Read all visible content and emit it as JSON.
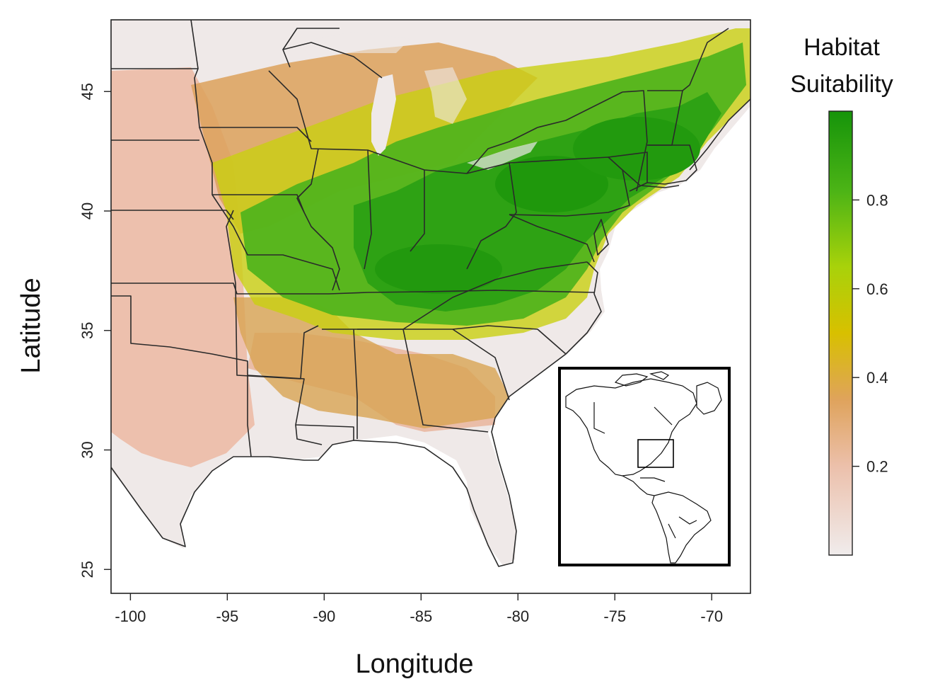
{
  "map": {
    "x_axis_title": "Longitude",
    "y_axis_title": "Latitude",
    "lon_range": [
      -101,
      -68
    ],
    "lat_range": [
      24,
      48
    ],
    "x_ticks": [
      {
        "value": -100,
        "label": "-100"
      },
      {
        "value": -95,
        "label": "-95"
      },
      {
        "value": -90,
        "label": "-90"
      },
      {
        "value": -85,
        "label": "-85"
      },
      {
        "value": -80,
        "label": "-80"
      },
      {
        "value": -75,
        "label": "-75"
      },
      {
        "value": -70,
        "label": "-70"
      }
    ],
    "y_ticks": [
      {
        "value": 25,
        "label": "25"
      },
      {
        "value": 30,
        "label": "30"
      },
      {
        "value": 35,
        "label": "35"
      },
      {
        "value": 40,
        "label": "40"
      },
      {
        "value": 45,
        "label": "45"
      }
    ],
    "region": "Eastern United States",
    "layers": [
      "habitat suitability raster",
      "state boundaries",
      "inset locator map"
    ]
  },
  "legend": {
    "title_line1": "Habitat",
    "title_line2": "Suitability",
    "range": [
      0,
      1
    ],
    "ticks": [
      {
        "value": 0.2,
        "label": "0.2"
      },
      {
        "value": 0.4,
        "label": "0.4"
      },
      {
        "value": 0.6,
        "label": "0.6"
      },
      {
        "value": 0.8,
        "label": "0.8"
      }
    ],
    "colors": {
      "low": "#f0ecec",
      "low_mid": "#e8a789",
      "mid": "#d9a23c",
      "mid_high": "#d8d000",
      "high_mid": "#8ccd10",
      "high": "#1e9a0a"
    }
  },
  "inset": {
    "description_icon": "western-hemisphere-locator-icon"
  }
}
